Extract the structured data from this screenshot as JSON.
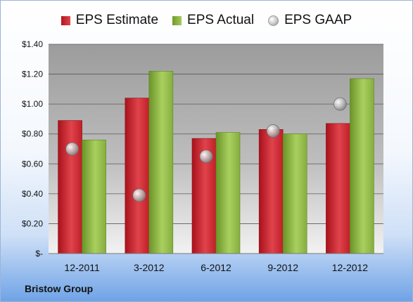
{
  "chart_data": {
    "type": "bar",
    "title": "",
    "xlabel": "",
    "ylabel": "",
    "categories": [
      "12-2011",
      "3-2012",
      "6-2012",
      "9-2012",
      "12-2012"
    ],
    "series": [
      {
        "name": "EPS Estimate",
        "type": "bar",
        "color": "#c9222c",
        "values": [
          0.89,
          1.04,
          0.77,
          0.83,
          0.87
        ]
      },
      {
        "name": "EPS Actual",
        "type": "bar",
        "color": "#8db447",
        "values": [
          0.76,
          1.22,
          0.81,
          0.8,
          1.17
        ]
      },
      {
        "name": "EPS GAAP",
        "type": "scatter",
        "color": "#b8b8b8",
        "values": [
          0.7,
          0.39,
          0.65,
          0.82,
          1.0
        ]
      }
    ],
    "yticks": [
      "$-",
      "$0.20",
      "$0.40",
      "$0.60",
      "$0.80",
      "$1.00",
      "$1.20",
      "$1.40"
    ],
    "ylim": [
      0,
      1.4
    ],
    "grid": true,
    "legend": "top"
  },
  "company": "Bristow Group"
}
